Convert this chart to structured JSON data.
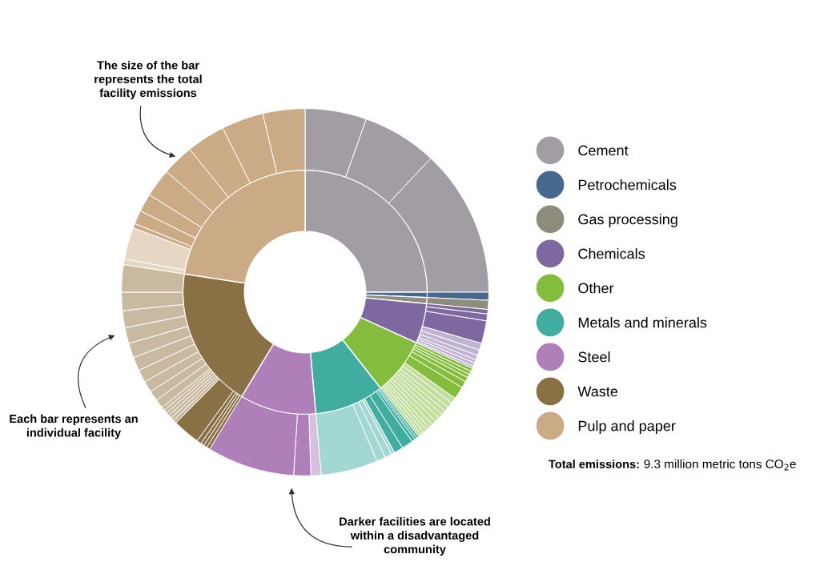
{
  "chart_data": {
    "type": "donut",
    "categories": [
      "Cement",
      "Petrochemicals",
      "Gas processing",
      "Chemicals",
      "Other",
      "Metals and minerals",
      "Steel",
      "Waste",
      "Pulp and paper"
    ],
    "values": [
      25.0,
      0.7,
      0.8,
      5.3,
      7.6,
      9.2,
      10.1,
      18.7,
      22.6
    ],
    "colors": [
      "#a29ca4",
      "#46688f",
      "#8e8c7c",
      "#7d68a0",
      "#84bd3e",
      "#41ada1",
      "#ae7fb9",
      "#8a7045",
      "#cbab85"
    ],
    "series": [
      {
        "x": [
          null,
          null,
          null,
          null,
          null,
          null,
          null,
          null,
          null,
          null,
          null,
          null,
          null,
          null,
          null,
          null,
          null,
          null,
          null,
          null,
          null,
          null,
          null,
          null,
          null,
          null,
          null,
          null,
          null,
          null,
          null,
          null,
          null,
          null,
          null,
          null,
          null,
          null,
          null,
          null,
          null,
          null,
          null,
          null,
          null,
          null,
          null,
          null,
          null,
          null,
          null,
          null,
          null,
          null,
          null,
          null,
          null,
          null,
          null,
          null,
          null,
          null,
          null,
          null,
          null,
          null,
          null,
          null,
          null,
          null,
          null,
          null,
          null,
          null,
          null
        ],
        "values": [
          5.4,
          6.6,
          13.0,
          0.7,
          0.8,
          0.4,
          0.6,
          2.0,
          0.6,
          0.5,
          0.4,
          0.3,
          0.3,
          0.2,
          0.3,
          0.3,
          0.3,
          0.4,
          0.6,
          1.1,
          0.5,
          0.5,
          0.4,
          0.4,
          0.4,
          0.4,
          0.4,
          0.4,
          0.3,
          0.3,
          0.3,
          0.3,
          0.2,
          0.2,
          0.3,
          1.0,
          0.8,
          0.3,
          0.6,
          0.8,
          5.0,
          0.9,
          1.5,
          7.7,
          0.3,
          0.3,
          0.3,
          0.4,
          2.4,
          0.3,
          0.3,
          0.3,
          0.3,
          0.3,
          0.3,
          0.8,
          0.9,
          1.0,
          1.1,
          1.2,
          1.3,
          1.4,
          1.5,
          1.6,
          2.4,
          0.5,
          2.8,
          0.4,
          1.2,
          1.6,
          2.5,
          2.8,
          3.4,
          3.7,
          3.7
        ],
        "colors": [
          "#a29ca4",
          "#a29ca4",
          "#a29ca4",
          "#46688f",
          "#8e8c7c",
          "#7d68a0",
          "#7d68a0",
          "#7d68a0",
          "#c0b3d2",
          "#c0b3d2",
          "#c0b3d2",
          "#c0b3d2",
          "#c0b3d2",
          "#c0b3d2",
          "#84bd3e",
          "#84bd3e",
          "#84bd3e",
          "#84bd3e",
          "#84bd3e",
          "#84bd3e",
          "#c4dea0",
          "#c4dea0",
          "#c4dea0",
          "#c4dea0",
          "#c4dea0",
          "#c4dea0",
          "#c4dea0",
          "#c4dea0",
          "#c4dea0",
          "#c4dea0",
          "#c4dea0",
          "#c4dea0",
          "#41ada1",
          "#41ada1",
          "#41ada1",
          "#41ada1",
          "#41ada1",
          "#a3d8d2",
          "#a3d8d2",
          "#a3d8d2",
          "#a3d8d2",
          "#d5c0de",
          "#ae7fb9",
          "#ae7fb9",
          "#8a7045",
          "#8a7045",
          "#8a7045",
          "#8a7045",
          "#8a7045",
          "#c8b9a0",
          "#c8b9a0",
          "#c8b9a0",
          "#c8b9a0",
          "#c8b9a0",
          "#c8b9a0",
          "#c8b9a0",
          "#c8b9a0",
          "#c8b9a0",
          "#c8b9a0",
          "#c8b9a0",
          "#c8b9a0",
          "#c8b9a0",
          "#c8b9a0",
          "#c8b9a0",
          "#c8b9a0",
          "#e5d7c4",
          "#e5d7c4",
          "#cbab85",
          "#cbab85",
          "#cbab85",
          "#cbab85",
          "#cbab85",
          "#cbab85",
          "#cbab85",
          "#cbab85"
        ]
      }
    ],
    "legend": "right",
    "annotations": [
      "The size of the bar\nrepresents the total\nfacility emissions",
      "Each bar represents an\nindividual facility",
      "Darker facilities are located\nwithin a disadvantaged\ncommunity",
      "Total emissions: 9.3 million metric tons CO$_{2}$e"
    ]
  }
}
